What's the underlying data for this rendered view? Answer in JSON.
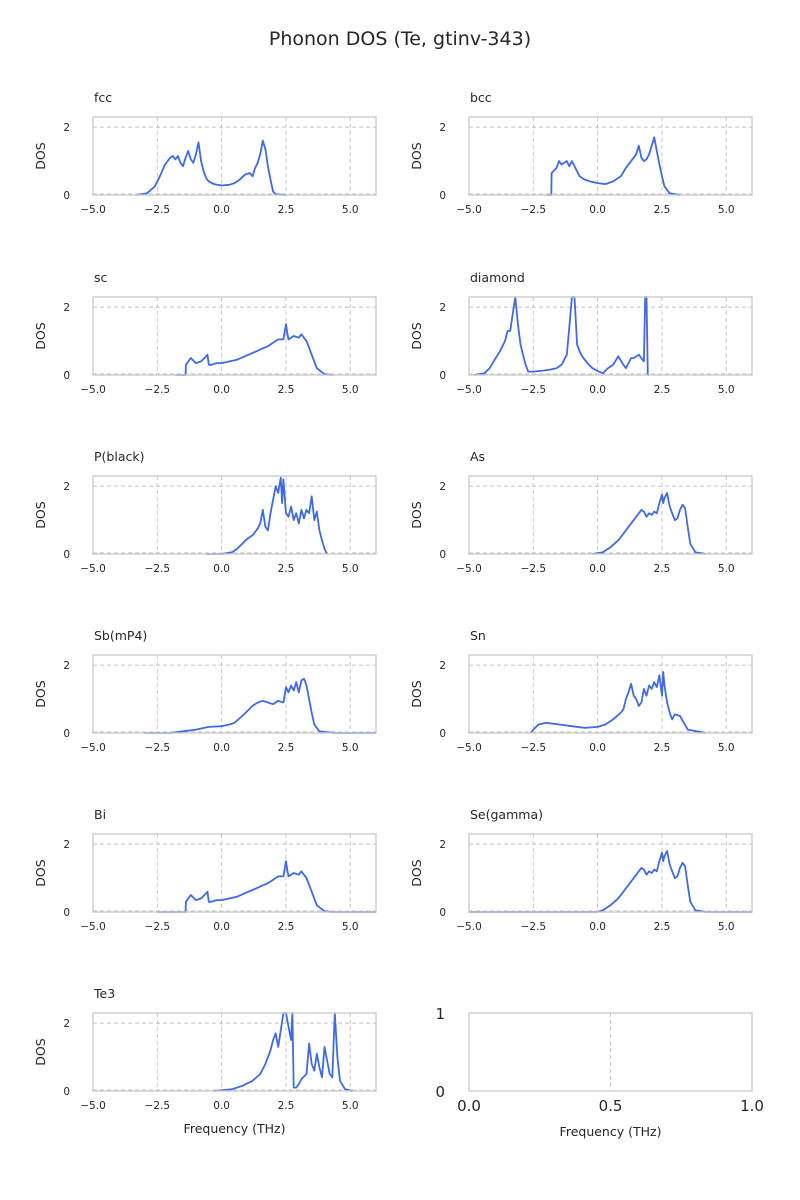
{
  "title": "Phonon DOS (Te, gtinv-343)",
  "colors": {
    "line": "#4169e1",
    "grid": "#c8c8c8",
    "frame": "#cccccc",
    "text": "#262626"
  },
  "chart_data": [
    {
      "type": "line",
      "title": "fcc",
      "xlabel": "",
      "ylabel": "DOS",
      "xlim": [
        -5,
        6
      ],
      "ylim": [
        0,
        2.3
      ],
      "xticks": [
        "−5.0",
        "−2.5",
        "0.0",
        "2.5",
        "5.0"
      ],
      "yticks": [
        "0",
        "2"
      ],
      "hline": 2,
      "x": [
        -3.3,
        -2.9,
        -2.6,
        -2.4,
        -2.2,
        -2.0,
        -1.9,
        -1.8,
        -1.7,
        -1.6,
        -1.5,
        -1.4,
        -1.3,
        -1.2,
        -1.1,
        -1.0,
        -0.9,
        -0.8,
        -0.7,
        -0.6,
        -0.5,
        -0.3,
        0.0,
        0.3,
        0.5,
        0.7,
        0.9,
        1.1,
        1.2,
        1.3,
        1.4,
        1.5,
        1.6,
        1.7,
        1.8,
        1.9,
        2.0,
        2.1,
        2.5
      ],
      "y": [
        0,
        0.05,
        0.25,
        0.55,
        0.9,
        1.1,
        1.15,
        1.05,
        1.15,
        0.95,
        0.85,
        1.1,
        1.3,
        1.05,
        0.95,
        1.2,
        1.55,
        1.0,
        0.7,
        0.5,
        0.4,
        0.32,
        0.28,
        0.3,
        0.35,
        0.45,
        0.6,
        0.65,
        0.55,
        0.8,
        0.95,
        1.2,
        1.6,
        1.35,
        0.85,
        0.45,
        0.1,
        0.02,
        0
      ]
    },
    {
      "type": "line",
      "title": "bcc",
      "xlabel": "",
      "ylabel": "DOS",
      "xlim": [
        -5,
        6
      ],
      "ylim": [
        0,
        2.3
      ],
      "xticks": [
        "−5.0",
        "−2.5",
        "0.0",
        "2.5",
        "5.0"
      ],
      "yticks": [
        "0",
        "2"
      ],
      "hline": 2,
      "x": [
        -2.0,
        -1.8,
        -1.79,
        -1.6,
        -1.5,
        -1.4,
        -1.3,
        -1.2,
        -1.1,
        -1.0,
        -0.9,
        -0.8,
        -0.7,
        -0.5,
        -0.3,
        0.0,
        0.3,
        0.6,
        0.9,
        1.1,
        1.3,
        1.5,
        1.6,
        1.7,
        1.8,
        1.9,
        2.0,
        2.1,
        2.2,
        2.3,
        2.4,
        2.5,
        2.6,
        2.8,
        3.2
      ],
      "y": [
        0,
        0,
        0.65,
        0.8,
        1.0,
        0.9,
        0.95,
        1.0,
        0.85,
        1.0,
        0.85,
        0.7,
        0.55,
        0.45,
        0.4,
        0.35,
        0.32,
        0.4,
        0.55,
        0.8,
        1.0,
        1.2,
        1.45,
        1.1,
        1.0,
        1.05,
        1.2,
        1.45,
        1.7,
        1.3,
        0.9,
        0.55,
        0.25,
        0.05,
        0
      ]
    },
    {
      "type": "line",
      "title": "sc",
      "xlabel": "",
      "ylabel": "DOS",
      "xlim": [
        -5,
        6
      ],
      "ylim": [
        0,
        2.3
      ],
      "xticks": [
        "−5.0",
        "−2.5",
        "0.0",
        "2.5",
        "5.0"
      ],
      "yticks": [
        "0",
        "2"
      ],
      "hline": 2,
      "x": [
        -1.8,
        -1.4,
        -1.39,
        -1.2,
        -1.0,
        -0.8,
        -0.6,
        -0.55,
        -0.5,
        -0.4,
        -0.2,
        0.0,
        0.3,
        0.6,
        0.9,
        1.2,
        1.5,
        1.8,
        2.0,
        2.2,
        2.4,
        2.5,
        2.55,
        2.6,
        2.8,
        3.0,
        3.1,
        3.3,
        3.5,
        3.7,
        4.0,
        4.3
      ],
      "y": [
        0,
        0,
        0.3,
        0.5,
        0.35,
        0.4,
        0.55,
        0.6,
        0.3,
        0.3,
        0.35,
        0.35,
        0.4,
        0.45,
        0.55,
        0.65,
        0.75,
        0.85,
        0.95,
        1.05,
        1.05,
        1.5,
        1.25,
        1.05,
        1.15,
        1.1,
        1.2,
        1.0,
        0.6,
        0.2,
        0.02,
        0
      ]
    },
    {
      "type": "line",
      "title": "diamond",
      "xlabel": "",
      "ylabel": "DOS",
      "xlim": [
        -5,
        6
      ],
      "ylim": [
        0,
        2.3
      ],
      "xticks": [
        "−5.0",
        "−2.5",
        "0.0",
        "2.5",
        "5.0"
      ],
      "yticks": [
        "0",
        "2"
      ],
      "hline": 2,
      "x": [
        -4.8,
        -4.4,
        -4.2,
        -4.0,
        -3.8,
        -3.6,
        -3.5,
        -3.4,
        -3.3,
        -3.2,
        -3.1,
        -3.0,
        -2.9,
        -2.8,
        -2.7,
        -2.5,
        -2.2,
        -1.9,
        -1.6,
        -1.4,
        -1.2,
        -1.1,
        -1.0,
        -0.9,
        -0.8,
        -0.7,
        -0.6,
        -0.4,
        -0.2,
        0.0,
        0.2,
        0.4,
        0.6,
        0.8,
        1.0,
        1.1,
        1.2,
        1.3,
        1.4,
        1.6,
        1.8,
        1.85,
        1.9,
        1.95,
        2.0
      ],
      "y": [
        0,
        0.05,
        0.2,
        0.45,
        0.7,
        1.0,
        1.3,
        1.3,
        1.8,
        2.3,
        1.5,
        0.9,
        0.6,
        0.3,
        0.1,
        0.1,
        0.12,
        0.15,
        0.2,
        0.3,
        0.6,
        1.4,
        2.3,
        2.3,
        0.9,
        0.7,
        0.55,
        0.35,
        0.2,
        0.12,
        0.05,
        0.2,
        0.3,
        0.55,
        0.3,
        0.2,
        0.35,
        0.5,
        0.5,
        0.6,
        0.4,
        2.3,
        2.3,
        0,
        0
      ]
    },
    {
      "type": "line",
      "title": "P(black)",
      "xlabel": "",
      "ylabel": "DOS",
      "xlim": [
        -5,
        6
      ],
      "ylim": [
        0,
        2.3
      ],
      "xticks": [
        "−5.0",
        "−2.5",
        "0.0",
        "2.5",
        "5.0"
      ],
      "yticks": [
        "0",
        "2"
      ],
      "hline": 2,
      "x": [
        -0.6,
        0.0,
        0.4,
        0.6,
        0.8,
        1.0,
        1.2,
        1.4,
        1.5,
        1.6,
        1.7,
        1.8,
        1.9,
        2.0,
        2.1,
        2.2,
        2.3,
        2.35,
        2.4,
        2.5,
        2.6,
        2.7,
        2.8,
        2.9,
        3.0,
        3.1,
        3.2,
        3.3,
        3.4,
        3.5,
        3.6,
        3.7,
        3.8,
        3.9,
        4.0,
        4.1
      ],
      "y": [
        0,
        0,
        0.05,
        0.15,
        0.3,
        0.45,
        0.55,
        0.75,
        0.9,
        1.3,
        0.8,
        0.7,
        1.2,
        1.6,
        2.0,
        1.8,
        2.25,
        1.5,
        2.2,
        1.2,
        1.1,
        1.4,
        1.0,
        1.2,
        0.9,
        1.3,
        1.05,
        1.3,
        1.2,
        1.7,
        1.0,
        1.25,
        0.7,
        0.4,
        0.15,
        0
      ]
    },
    {
      "type": "line",
      "title": "As",
      "xlabel": "",
      "ylabel": "DOS",
      "xlim": [
        -5,
        6
      ],
      "ylim": [
        0,
        2.3
      ],
      "xticks": [
        "−5.0",
        "−2.5",
        "0.0",
        "2.5",
        "5.0"
      ],
      "yticks": [
        "0",
        "2"
      ],
      "hline": 2,
      "x": [
        -0.2,
        0.2,
        0.5,
        0.8,
        1.0,
        1.2,
        1.4,
        1.6,
        1.7,
        1.8,
        1.9,
        2.0,
        2.1,
        2.2,
        2.3,
        2.4,
        2.5,
        2.55,
        2.6,
        2.7,
        2.8,
        2.9,
        3.0,
        3.1,
        3.2,
        3.3,
        3.4,
        3.5,
        3.6,
        3.8,
        4.2
      ],
      "y": [
        0,
        0.05,
        0.2,
        0.4,
        0.6,
        0.8,
        1.0,
        1.2,
        1.3,
        1.25,
        1.1,
        1.2,
        1.15,
        1.25,
        1.2,
        1.5,
        1.75,
        1.5,
        1.65,
        1.8,
        1.4,
        1.2,
        1.0,
        1.05,
        1.3,
        1.45,
        1.35,
        0.8,
        0.3,
        0.05,
        0
      ]
    },
    {
      "type": "line",
      "title": "Sb(mP4)",
      "xlabel": "",
      "ylabel": "DOS",
      "xlim": [
        -5,
        6
      ],
      "ylim": [
        0,
        2.3
      ],
      "xticks": [
        "−5.0",
        "−2.5",
        "0.0",
        "2.5",
        "5.0"
      ],
      "yticks": [
        "0",
        "2"
      ],
      "hline": 2,
      "x": [
        -3.0,
        -2.0,
        -1.5,
        -1.0,
        -0.5,
        0.0,
        0.3,
        0.5,
        0.8,
        1.0,
        1.2,
        1.4,
        1.6,
        1.8,
        2.0,
        2.2,
        2.4,
        2.5,
        2.6,
        2.7,
        2.8,
        2.9,
        3.0,
        3.1,
        3.2,
        3.3,
        3.4,
        3.5,
        3.6,
        3.8,
        4.1,
        4.5,
        6.0
      ],
      "y": [
        0,
        0,
        0.05,
        0.1,
        0.18,
        0.2,
        0.25,
        0.3,
        0.5,
        0.65,
        0.8,
        0.9,
        0.95,
        0.9,
        0.85,
        0.95,
        0.9,
        1.35,
        1.2,
        1.4,
        1.25,
        1.5,
        1.2,
        1.55,
        1.6,
        1.4,
        1.0,
        0.6,
        0.25,
        0.05,
        0.02,
        0,
        0
      ]
    },
    {
      "type": "line",
      "title": "Sn",
      "xlabel": "",
      "ylabel": "DOS",
      "xlim": [
        -5,
        6
      ],
      "ylim": [
        0,
        2.3
      ],
      "xticks": [
        "−5.0",
        "−2.5",
        "0.0",
        "2.5",
        "5.0"
      ],
      "yticks": [
        "0",
        "2"
      ],
      "hline": 2,
      "x": [
        -2.6,
        -2.5,
        -2.3,
        -2.0,
        -1.5,
        -1.0,
        -0.5,
        0.0,
        0.3,
        0.6,
        0.9,
        1.0,
        1.1,
        1.2,
        1.3,
        1.4,
        1.5,
        1.6,
        1.7,
        1.8,
        1.9,
        2.0,
        2.1,
        2.2,
        2.3,
        2.4,
        2.5,
        2.55,
        2.6,
        2.7,
        2.8,
        2.9,
        3.0,
        3.2,
        3.5,
        4.2
      ],
      "y": [
        0,
        0.1,
        0.25,
        0.3,
        0.25,
        0.2,
        0.15,
        0.18,
        0.25,
        0.4,
        0.6,
        0.7,
        1.0,
        1.2,
        1.45,
        1.1,
        1.0,
        0.8,
        0.9,
        1.3,
        1.1,
        1.4,
        1.3,
        1.5,
        1.35,
        1.7,
        1.1,
        1.8,
        1.4,
        0.9,
        0.6,
        0.4,
        0.55,
        0.5,
        0.1,
        0
      ]
    },
    {
      "type": "line",
      "title": "Bi",
      "xlabel": "",
      "ylabel": "DOS",
      "xlim": [
        -5,
        6
      ],
      "ylim": [
        0,
        2.3
      ],
      "xticks": [
        "−5.0",
        "−2.5",
        "0.0",
        "2.5",
        "5.0"
      ],
      "yticks": [
        "0",
        "2"
      ],
      "hline": 2,
      "x": [
        -2.5,
        -1.4,
        -1.39,
        -1.2,
        -1.0,
        -0.8,
        -0.6,
        -0.55,
        -0.5,
        -0.4,
        -0.2,
        0.0,
        0.3,
        0.6,
        0.9,
        1.2,
        1.5,
        1.8,
        2.0,
        2.2,
        2.4,
        2.5,
        2.55,
        2.6,
        2.8,
        3.0,
        3.1,
        3.3,
        3.5,
        3.7,
        4.0,
        4.3,
        6.0
      ],
      "y": [
        0,
        0,
        0.3,
        0.5,
        0.35,
        0.4,
        0.55,
        0.6,
        0.3,
        0.3,
        0.35,
        0.35,
        0.4,
        0.45,
        0.55,
        0.65,
        0.75,
        0.85,
        0.95,
        1.05,
        1.05,
        1.5,
        1.25,
        1.05,
        1.15,
        1.1,
        1.2,
        1.0,
        0.6,
        0.2,
        0.02,
        0,
        0
      ]
    },
    {
      "type": "line",
      "title": "Se(gamma)",
      "xlabel": "",
      "ylabel": "DOS",
      "xlim": [
        -5,
        6
      ],
      "ylim": [
        0,
        2.3
      ],
      "xticks": [
        "−5.0",
        "−2.5",
        "0.0",
        "2.5",
        "5.0"
      ],
      "yticks": [
        "0",
        "2"
      ],
      "hline": 2,
      "x": [
        -5,
        0.0,
        0.2,
        0.5,
        0.8,
        1.0,
        1.2,
        1.4,
        1.6,
        1.7,
        1.8,
        1.9,
        2.0,
        2.1,
        2.2,
        2.3,
        2.4,
        2.5,
        2.55,
        2.6,
        2.7,
        2.8,
        2.9,
        3.0,
        3.1,
        3.2,
        3.3,
        3.4,
        3.5,
        3.6,
        3.8,
        4.2,
        6.0
      ],
      "y": [
        0,
        0,
        0.05,
        0.2,
        0.4,
        0.6,
        0.8,
        1.0,
        1.2,
        1.3,
        1.25,
        1.1,
        1.2,
        1.15,
        1.25,
        1.2,
        1.5,
        1.75,
        1.5,
        1.65,
        1.8,
        1.4,
        1.2,
        1.0,
        1.05,
        1.3,
        1.45,
        1.35,
        0.8,
        0.3,
        0.05,
        0,
        0
      ]
    },
    {
      "type": "line",
      "title": "Te3",
      "xlabel": "Frequency (THz)",
      "ylabel": "DOS",
      "xlim": [
        -5,
        6
      ],
      "ylim": [
        0,
        2.3
      ],
      "xticks": [
        "−5.0",
        "−2.5",
        "0.0",
        "2.5",
        "5.0"
      ],
      "yticks": [
        "0",
        "2"
      ],
      "hline": 2,
      "x": [
        -0.3,
        0.0,
        0.4,
        0.8,
        1.2,
        1.5,
        1.7,
        1.9,
        2.0,
        2.1,
        2.2,
        2.3,
        2.4,
        2.45,
        2.5,
        2.6,
        2.7,
        2.75,
        2.8,
        2.9,
        3.0,
        3.1,
        3.3,
        3.4,
        3.5,
        3.6,
        3.7,
        3.8,
        3.9,
        4.0,
        4.1,
        4.2,
        4.3,
        4.4,
        4.5,
        4.6,
        4.8,
        5.1
      ],
      "y": [
        0,
        0.02,
        0.05,
        0.15,
        0.3,
        0.5,
        0.8,
        1.2,
        1.5,
        1.7,
        1.3,
        1.8,
        2.3,
        2.3,
        2.3,
        1.9,
        1.5,
        2.3,
        0.1,
        0.1,
        0.2,
        0.35,
        0.5,
        1.4,
        0.8,
        0.6,
        1.1,
        0.7,
        0.4,
        1.3,
        0.9,
        0.5,
        0.4,
        2.3,
        1.0,
        0.3,
        0.05,
        0
      ]
    },
    {
      "type": "empty",
      "title": "",
      "xlabel": "Frequency (THz)",
      "ylabel": "",
      "xlim": [
        0,
        1
      ],
      "ylim": [
        0,
        1
      ],
      "xticks": [
        "0.0",
        "0.5",
        "1.0"
      ],
      "yticks": [
        "0",
        "1"
      ]
    }
  ]
}
